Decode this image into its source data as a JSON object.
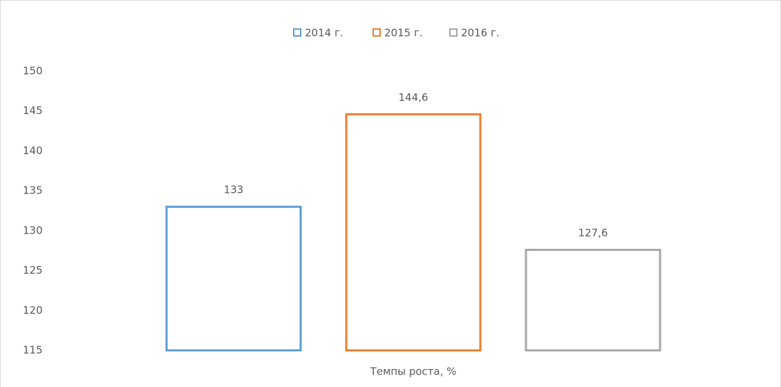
{
  "chart_data": {
    "type": "bar",
    "categories": [
      "Темпы роста, %"
    ],
    "series": [
      {
        "name": "2014 г.",
        "color": "#5b9bd5",
        "values": [
          133
        ]
      },
      {
        "name": "2015 г.",
        "color": "#ed7d31",
        "values": [
          144.6
        ],
        "value_labels": [
          "144,6"
        ]
      },
      {
        "name": "2016 г.",
        "color": "#a5a5a5",
        "values": [
          127.6
        ],
        "value_labels": [
          "127,6"
        ]
      }
    ],
    "ylim": [
      115,
      150
    ],
    "yticks": [
      115,
      120,
      125,
      130,
      135,
      140,
      145,
      150
    ],
    "grid": false,
    "legend": "top"
  }
}
